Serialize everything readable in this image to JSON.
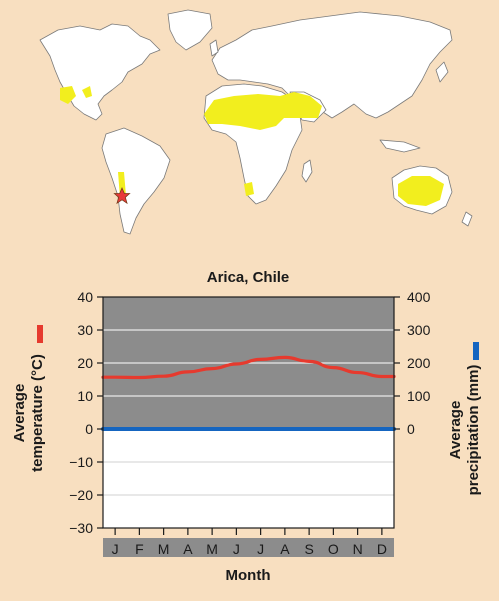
{
  "colors": {
    "background": "#f8dfc0",
    "land": "#ffffff",
    "desert": "#f2ee1e",
    "plot_above_zero": "#8c8c8c",
    "plot_below_zero": "#ffffff",
    "temperature_line": "#e63a2e",
    "precipitation_line": "#1565c0",
    "month_strip": "#8c8c8c",
    "marker": "#e83a3a"
  },
  "map": {
    "marker_icon": "star-icon"
  },
  "chart_data": {
    "type": "line",
    "title": "Arica, Chile",
    "xlabel": "Month",
    "ylabel_left": "Average temperature (°C)",
    "ylabel_left_lines": [
      "Average",
      "temperature (°C)"
    ],
    "ylabel_right": "Average precipitation (mm)",
    "ylabel_right_lines": [
      "Average",
      "precipitation (mm)"
    ],
    "categories": [
      "J",
      "F",
      "M",
      "A",
      "M",
      "J",
      "J",
      "A",
      "S",
      "O",
      "N",
      "D"
    ],
    "left_axis": {
      "min": -30,
      "max": 40,
      "ticks": [
        -30,
        -20,
        -10,
        0,
        10,
        20,
        30,
        40
      ],
      "tick_labels": [
        "−30",
        "−20",
        "−10",
        "0",
        "10",
        "20",
        "30",
        "40"
      ]
    },
    "right_axis": {
      "min": -300,
      "max": 400,
      "ticks": [
        0,
        100,
        200,
        300,
        400
      ],
      "tick_labels": [
        "0",
        "100",
        "200",
        "300",
        "400"
      ]
    },
    "grid": true,
    "series": [
      {
        "key": "temperature",
        "axis": "left",
        "values": [
          15.7,
          15.6,
          16.0,
          17.3,
          18.3,
          19.7,
          21.1,
          21.7,
          20.5,
          18.6,
          17.1,
          15.9
        ]
      },
      {
        "key": "precipitation",
        "axis": "right",
        "values": [
          0,
          0,
          0,
          0,
          0,
          0,
          0,
          0,
          0,
          0,
          0,
          0
        ]
      }
    ]
  }
}
